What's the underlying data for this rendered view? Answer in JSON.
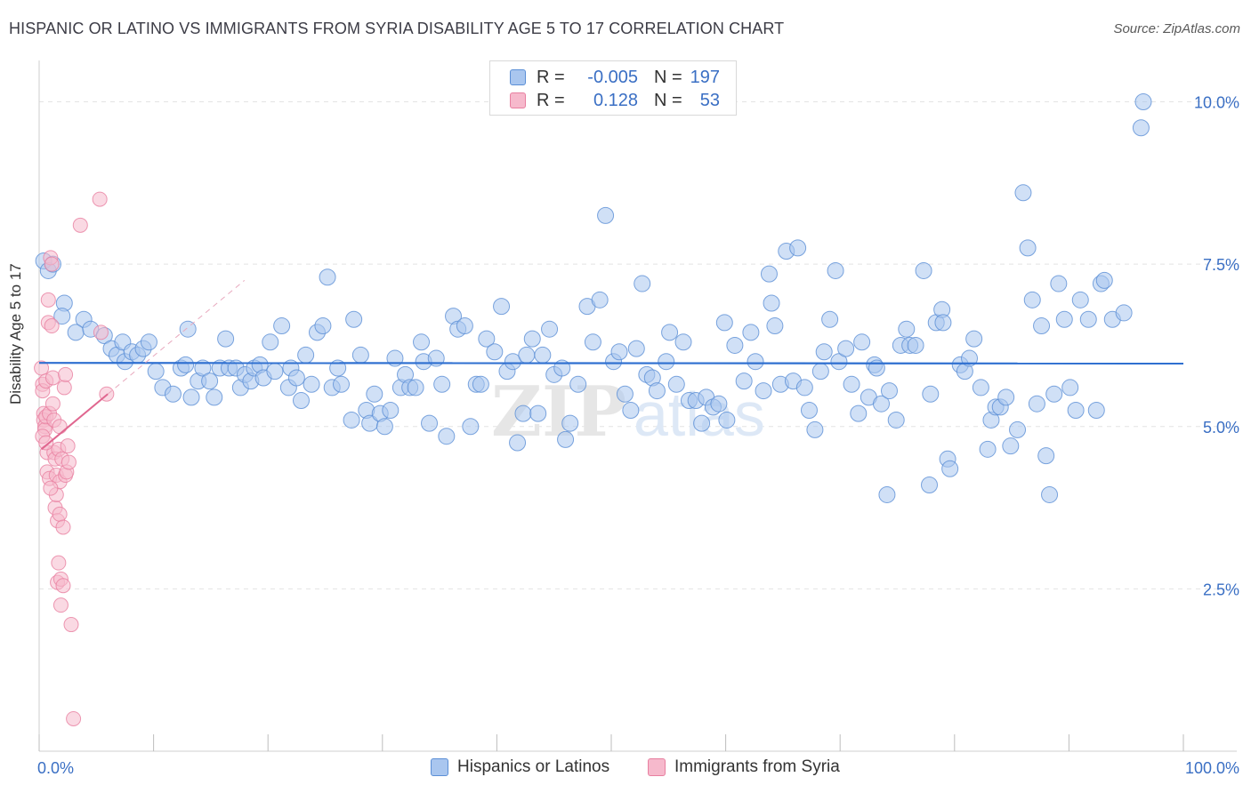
{
  "chart_data": {
    "type": "scatter",
    "title": "HISPANIC OR LATINO VS IMMIGRANTS FROM SYRIA DISABILITY AGE 5 TO 17 CORRELATION CHART",
    "source": "Source: ZipAtlas.com",
    "watermark": "ZIPatlas",
    "xlabel": "",
    "ylabel": "Disability Age 5 to 17",
    "xlim": [
      0,
      100
    ],
    "ylim": [
      0,
      10.5
    ],
    "x_tick_labels": [
      {
        "value": 0,
        "label": "0.0%"
      },
      {
        "value": 100,
        "label": "100.0%"
      }
    ],
    "y_tick_labels": [
      {
        "value": 2.5,
        "label": "2.5%"
      },
      {
        "value": 5.0,
        "label": "5.0%"
      },
      {
        "value": 7.5,
        "label": "7.5%"
      },
      {
        "value": 10.0,
        "label": "10.0%"
      }
    ],
    "grid": true,
    "legend_top": {
      "placement": "top-center",
      "rows": [
        {
          "r_label": "R =",
          "r_value": "-0.005",
          "n_label": "N =",
          "n_value": "197"
        },
        {
          "r_label": "R =",
          "r_value": "0.128",
          "n_label": "N =",
          "n_value": "53"
        }
      ]
    },
    "legend_bottom": [
      "Hispanics or Latinos",
      "Immigrants from Syria"
    ],
    "colors": {
      "blue_fill": "#a9c6ef",
      "blue_stroke": "#5b8fd6",
      "blue_line": "#2e6fd0",
      "pink_fill": "#f6b9cc",
      "pink_stroke": "#e87fa0",
      "pink_line": "#e0668f",
      "axis_text": "#3a6fc4",
      "grid": "#e3e3e3"
    },
    "series": [
      {
        "name": "Hispanics or Latinos",
        "color": "#a9c6ef",
        "trend": {
          "x": [
            0,
            100
          ],
          "y": [
            5.98,
            5.97
          ]
        },
        "points": [
          [
            0.4,
            7.55
          ],
          [
            0.8,
            7.4
          ],
          [
            1.2,
            7.5
          ],
          [
            2.2,
            6.9
          ],
          [
            2,
            6.7
          ],
          [
            3.9,
            6.65
          ],
          [
            3.2,
            6.45
          ],
          [
            4.5,
            6.5
          ],
          [
            5.7,
            6.4
          ],
          [
            6.3,
            6.2
          ],
          [
            6.8,
            6.1
          ],
          [
            7.3,
            6.3
          ],
          [
            7.5,
            6.0
          ],
          [
            8.1,
            6.15
          ],
          [
            8.6,
            6.1
          ],
          [
            9.1,
            6.2
          ],
          [
            9.6,
            6.3
          ],
          [
            10.2,
            5.85
          ],
          [
            10.8,
            5.6
          ],
          [
            11.7,
            5.5
          ],
          [
            12.4,
            5.9
          ],
          [
            12.8,
            5.95
          ],
          [
            13,
            6.5
          ],
          [
            13.3,
            5.45
          ],
          [
            13.9,
            5.7
          ],
          [
            14.3,
            5.9
          ],
          [
            14.9,
            5.7
          ],
          [
            15.3,
            5.45
          ],
          [
            15.8,
            5.9
          ],
          [
            16.3,
            6.35
          ],
          [
            16.6,
            5.9
          ],
          [
            17.2,
            5.9
          ],
          [
            17.6,
            5.6
          ],
          [
            18,
            5.8
          ],
          [
            18.5,
            5.7
          ],
          [
            18.8,
            5.9
          ],
          [
            19.3,
            5.95
          ],
          [
            19.6,
            5.75
          ],
          [
            20.2,
            6.3
          ],
          [
            20.6,
            5.85
          ],
          [
            21.2,
            6.55
          ],
          [
            21.8,
            5.6
          ],
          [
            22,
            5.9
          ],
          [
            22.5,
            5.75
          ],
          [
            22.9,
            5.4
          ],
          [
            23.3,
            6.1
          ],
          [
            23.8,
            5.65
          ],
          [
            24.3,
            6.45
          ],
          [
            24.8,
            6.55
          ],
          [
            25.2,
            7.3
          ],
          [
            25.6,
            5.6
          ],
          [
            26.1,
            5.9
          ],
          [
            26.4,
            5.65
          ],
          [
            27.3,
            5.1
          ],
          [
            27.5,
            6.65
          ],
          [
            28.1,
            6.1
          ],
          [
            28.6,
            5.25
          ],
          [
            28.9,
            5.05
          ],
          [
            29.3,
            5.5
          ],
          [
            29.8,
            5.2
          ],
          [
            30.2,
            5.0
          ],
          [
            30.7,
            5.25
          ],
          [
            31.1,
            6.05
          ],
          [
            31.6,
            5.6
          ],
          [
            32.0,
            5.8
          ],
          [
            32.4,
            5.6
          ],
          [
            32.9,
            5.6
          ],
          [
            33.4,
            6.3
          ],
          [
            33.6,
            6.0
          ],
          [
            34.1,
            5.05
          ],
          [
            34.7,
            6.05
          ],
          [
            35.2,
            5.65
          ],
          [
            35.6,
            4.85
          ],
          [
            36.2,
            6.7
          ],
          [
            36.6,
            6.5
          ],
          [
            37.2,
            6.55
          ],
          [
            37.7,
            5.0
          ],
          [
            38.2,
            5.65
          ],
          [
            38.6,
            5.65
          ],
          [
            39.1,
            6.35
          ],
          [
            39.8,
            6.15
          ],
          [
            40.4,
            6.85
          ],
          [
            40.9,
            5.85
          ],
          [
            41.4,
            6.0
          ],
          [
            41.8,
            4.75
          ],
          [
            42.3,
            5.2
          ],
          [
            42.6,
            6.1
          ],
          [
            43.1,
            6.35
          ],
          [
            43.6,
            5.2
          ],
          [
            44.0,
            6.1
          ],
          [
            44.6,
            6.5
          ],
          [
            45.0,
            5.8
          ],
          [
            45.7,
            5.9
          ],
          [
            46.0,
            4.8
          ],
          [
            46.4,
            5.05
          ],
          [
            47.1,
            5.65
          ],
          [
            47.9,
            6.85
          ],
          [
            48.4,
            6.3
          ],
          [
            49.0,
            6.95
          ],
          [
            49.5,
            8.25
          ],
          [
            50.2,
            6.0
          ],
          [
            50.7,
            6.15
          ],
          [
            51.2,
            5.5
          ],
          [
            51.7,
            5.25
          ],
          [
            52.2,
            6.2
          ],
          [
            52.7,
            7.2
          ],
          [
            53.1,
            5.8
          ],
          [
            53.6,
            5.75
          ],
          [
            54.0,
            5.55
          ],
          [
            54.8,
            6.0
          ],
          [
            55.1,
            6.45
          ],
          [
            55.7,
            5.65
          ],
          [
            56.3,
            6.3
          ],
          [
            56.8,
            5.4
          ],
          [
            57.4,
            5.4
          ],
          [
            57.9,
            5.05
          ],
          [
            58.3,
            5.45
          ],
          [
            58.9,
            5.3
          ],
          [
            59.4,
            5.35
          ],
          [
            60.1,
            5.1
          ],
          [
            60.8,
            6.25
          ],
          [
            61.6,
            5.7
          ],
          [
            62.2,
            6.45
          ],
          [
            62.6,
            6.0
          ],
          [
            63.3,
            5.55
          ],
          [
            63.8,
            7.35
          ],
          [
            64.3,
            6.55
          ],
          [
            64.8,
            5.65
          ],
          [
            65.3,
            7.7
          ],
          [
            65.9,
            5.7
          ],
          [
            66.3,
            7.75
          ],
          [
            66.9,
            5.6
          ],
          [
            67.3,
            5.25
          ],
          [
            67.8,
            4.95
          ],
          [
            68.3,
            5.85
          ],
          [
            68.6,
            6.15
          ],
          [
            69.1,
            6.65
          ],
          [
            69.6,
            7.4
          ],
          [
            69.9,
            6.0
          ],
          [
            70.5,
            6.2
          ],
          [
            71.0,
            5.65
          ],
          [
            71.6,
            5.2
          ],
          [
            71.9,
            6.3
          ],
          [
            72.5,
            5.45
          ],
          [
            73.0,
            5.95
          ],
          [
            73.2,
            5.9
          ],
          [
            73.6,
            5.35
          ],
          [
            74.3,
            5.55
          ],
          [
            74.9,
            5.1
          ],
          [
            75.3,
            6.25
          ],
          [
            75.8,
            6.5
          ],
          [
            76.1,
            6.25
          ],
          [
            76.6,
            6.25
          ],
          [
            77.3,
            7.4
          ],
          [
            77.9,
            5.5
          ],
          [
            78.4,
            6.6
          ],
          [
            78.9,
            6.8
          ],
          [
            79.4,
            4.5
          ],
          [
            79.6,
            4.35
          ],
          [
            80.5,
            5.95
          ],
          [
            80.9,
            5.85
          ],
          [
            81.3,
            6.05
          ],
          [
            81.7,
            6.35
          ],
          [
            82.3,
            5.6
          ],
          [
            82.9,
            4.65
          ],
          [
            83.2,
            5.1
          ],
          [
            83.6,
            5.3
          ],
          [
            84.0,
            5.3
          ],
          [
            84.5,
            5.45
          ],
          [
            84.9,
            4.7
          ],
          [
            85.5,
            4.95
          ],
          [
            86.0,
            8.6
          ],
          [
            86.4,
            7.75
          ],
          [
            86.8,
            6.95
          ],
          [
            87.2,
            5.35
          ],
          [
            87.6,
            6.55
          ],
          [
            88.0,
            4.55
          ],
          [
            88.3,
            3.95
          ],
          [
            88.7,
            5.5
          ],
          [
            89.1,
            7.2
          ],
          [
            89.6,
            6.65
          ],
          [
            90.1,
            5.6
          ],
          [
            90.6,
            5.25
          ],
          [
            91.0,
            6.95
          ],
          [
            91.7,
            6.65
          ],
          [
            92.4,
            5.25
          ],
          [
            92.8,
            7.2
          ],
          [
            93.1,
            7.25
          ],
          [
            93.8,
            6.65
          ],
          [
            96.5,
            10.0
          ],
          [
            96.3,
            9.6
          ],
          [
            74.1,
            3.95
          ],
          [
            77.8,
            4.1
          ],
          [
            79.0,
            6.6
          ],
          [
            94.8,
            6.75
          ],
          [
            64.0,
            6.9
          ],
          [
            59.9,
            6.6
          ]
        ]
      },
      {
        "name": "Immigrants from Syria",
        "color": "#f6b9cc",
        "trend": {
          "x": [
            0.2,
            6.0
          ],
          "y": [
            4.65,
            5.5
          ]
        },
        "points": [
          [
            0.2,
            5.9
          ],
          [
            0.3,
            5.65
          ],
          [
            0.3,
            5.55
          ],
          [
            0.4,
            5.2
          ],
          [
            0.4,
            5.1
          ],
          [
            0.5,
            5.0
          ],
          [
            0.5,
            4.95
          ],
          [
            0.6,
            5.7
          ],
          [
            0.6,
            5.15
          ],
          [
            0.7,
            4.6
          ],
          [
            0.7,
            4.3
          ],
          [
            0.8,
            6.95
          ],
          [
            0.8,
            6.6
          ],
          [
            0.9,
            5.2
          ],
          [
            0.9,
            4.2
          ],
          [
            1.0,
            7.6
          ],
          [
            1.1,
            7.5
          ],
          [
            1.1,
            6.55
          ],
          [
            1.2,
            5.75
          ],
          [
            1.2,
            5.35
          ],
          [
            1.3,
            5.1
          ],
          [
            1.3,
            4.6
          ],
          [
            1.4,
            4.5
          ],
          [
            1.4,
            3.75
          ],
          [
            1.5,
            4.25
          ],
          [
            1.5,
            3.95
          ],
          [
            1.6,
            3.55
          ],
          [
            1.6,
            2.6
          ],
          [
            1.7,
            4.65
          ],
          [
            1.7,
            2.9
          ],
          [
            1.8,
            4.15
          ],
          [
            1.8,
            3.65
          ],
          [
            1.9,
            2.65
          ],
          [
            1.9,
            2.25
          ],
          [
            2.0,
            4.5
          ],
          [
            2.1,
            3.45
          ],
          [
            2.1,
            2.55
          ],
          [
            2.2,
            5.6
          ],
          [
            2.3,
            4.25
          ],
          [
            2.3,
            5.8
          ],
          [
            2.4,
            4.3
          ],
          [
            2.5,
            4.7
          ],
          [
            2.6,
            4.45
          ],
          [
            2.8,
            1.95
          ],
          [
            3.0,
            0.5
          ],
          [
            3.6,
            8.1
          ],
          [
            5.3,
            8.5
          ],
          [
            5.4,
            6.45
          ],
          [
            5.9,
            5.5
          ],
          [
            0.3,
            4.85
          ],
          [
            0.6,
            4.75
          ],
          [
            1.0,
            4.05
          ],
          [
            1.8,
            5.0
          ]
        ]
      }
    ]
  }
}
